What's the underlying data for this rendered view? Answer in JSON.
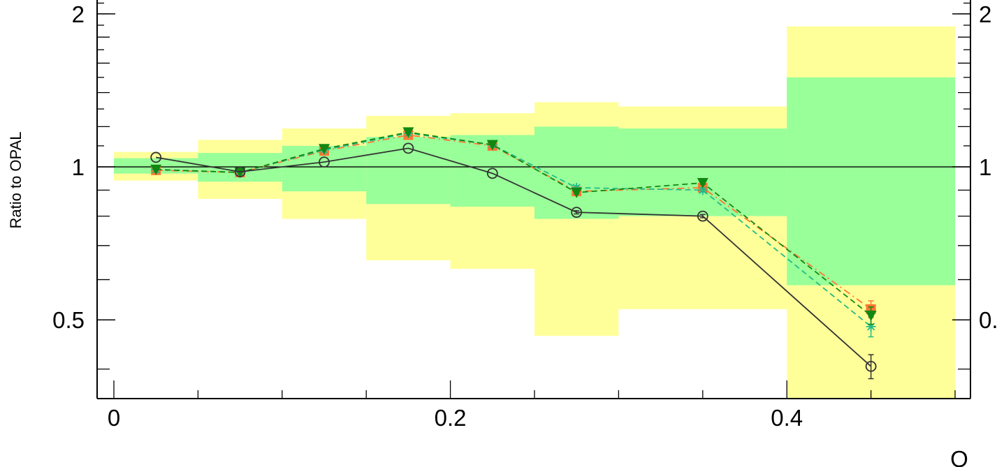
{
  "chart_data": {
    "type": "line",
    "title": "",
    "xlabel": "O",
    "ylabel": "Ratio to OPAL",
    "xlim": [
      0,
      0.5
    ],
    "ylim": [
      0.35,
      2.15
    ],
    "y_scale": "log",
    "x_ticks": [
      "0",
      "0.2",
      "0.4"
    ],
    "x_tick_values": [
      0,
      0.2,
      0.4
    ],
    "y_ticks": [
      "0.5",
      "1",
      "2"
    ],
    "y_tick_values": [
      0.5,
      1,
      2
    ],
    "y_ticks_right": [
      "0.",
      "1",
      "2"
    ],
    "reference_line": 1,
    "bands": {
      "bins": [
        [
          0,
          0.05
        ],
        [
          0.05,
          0.1
        ],
        [
          0.1,
          0.15
        ],
        [
          0.15,
          0.2
        ],
        [
          0.2,
          0.25
        ],
        [
          0.25,
          0.3
        ],
        [
          0.3,
          0.4
        ],
        [
          0.4,
          0.5
        ]
      ],
      "inner": {
        "color": "#99ff99",
        "low": [
          0.97,
          0.935,
          0.895,
          0.845,
          0.835,
          0.79,
          0.8,
          0.585
        ],
        "high": [
          1.04,
          1.065,
          1.1,
          1.145,
          1.155,
          1.2,
          1.19,
          1.5
        ]
      },
      "outer": {
        "color": "#ffff99",
        "low": [
          0.94,
          0.865,
          0.79,
          0.655,
          0.63,
          0.465,
          0.525,
          0.35
        ],
        "high": [
          1.07,
          1.13,
          1.19,
          1.26,
          1.275,
          1.34,
          1.315,
          1.89
        ]
      }
    },
    "x": [
      0.025,
      0.075,
      0.125,
      0.175,
      0.225,
      0.275,
      0.35,
      0.45
    ],
    "series": [
      {
        "marker": "open-circle",
        "color": "#333333",
        "dash": "",
        "values": [
          1.044,
          0.978,
          1.022,
          1.088,
          0.971,
          0.814,
          0.8,
          0.405
        ],
        "errors": [
          0.005,
          0.005,
          0.005,
          0.006,
          0.006,
          0.006,
          0.006,
          0.022
        ]
      },
      {
        "marker": "square",
        "color": "#ff7733",
        "dash": "10,5,2,5",
        "values": [
          0.985,
          0.975,
          1.075,
          1.155,
          1.1,
          0.895,
          0.91,
          0.525
        ],
        "errors": [
          0.005,
          0.005,
          0.005,
          0.006,
          0.006,
          0.006,
          0.006,
          0.02
        ]
      },
      {
        "marker": "asterisk",
        "color": "#22bb88",
        "dash": "8,5",
        "values": [
          0.988,
          0.975,
          1.08,
          1.165,
          1.105,
          0.91,
          0.9,
          0.485
        ],
        "errors": [
          0.005,
          0.005,
          0.005,
          0.006,
          0.006,
          0.008,
          0.008,
          0.022
        ]
      },
      {
        "marker": "triangle-down",
        "color": "#118811",
        "dash": "8,5",
        "values": [
          0.988,
          0.975,
          1.085,
          1.17,
          1.105,
          0.89,
          0.93,
          0.51
        ],
        "errors": [
          0.005,
          0.005,
          0.005,
          0.006,
          0.006,
          0.006,
          0.006,
          0.02
        ]
      }
    ]
  }
}
